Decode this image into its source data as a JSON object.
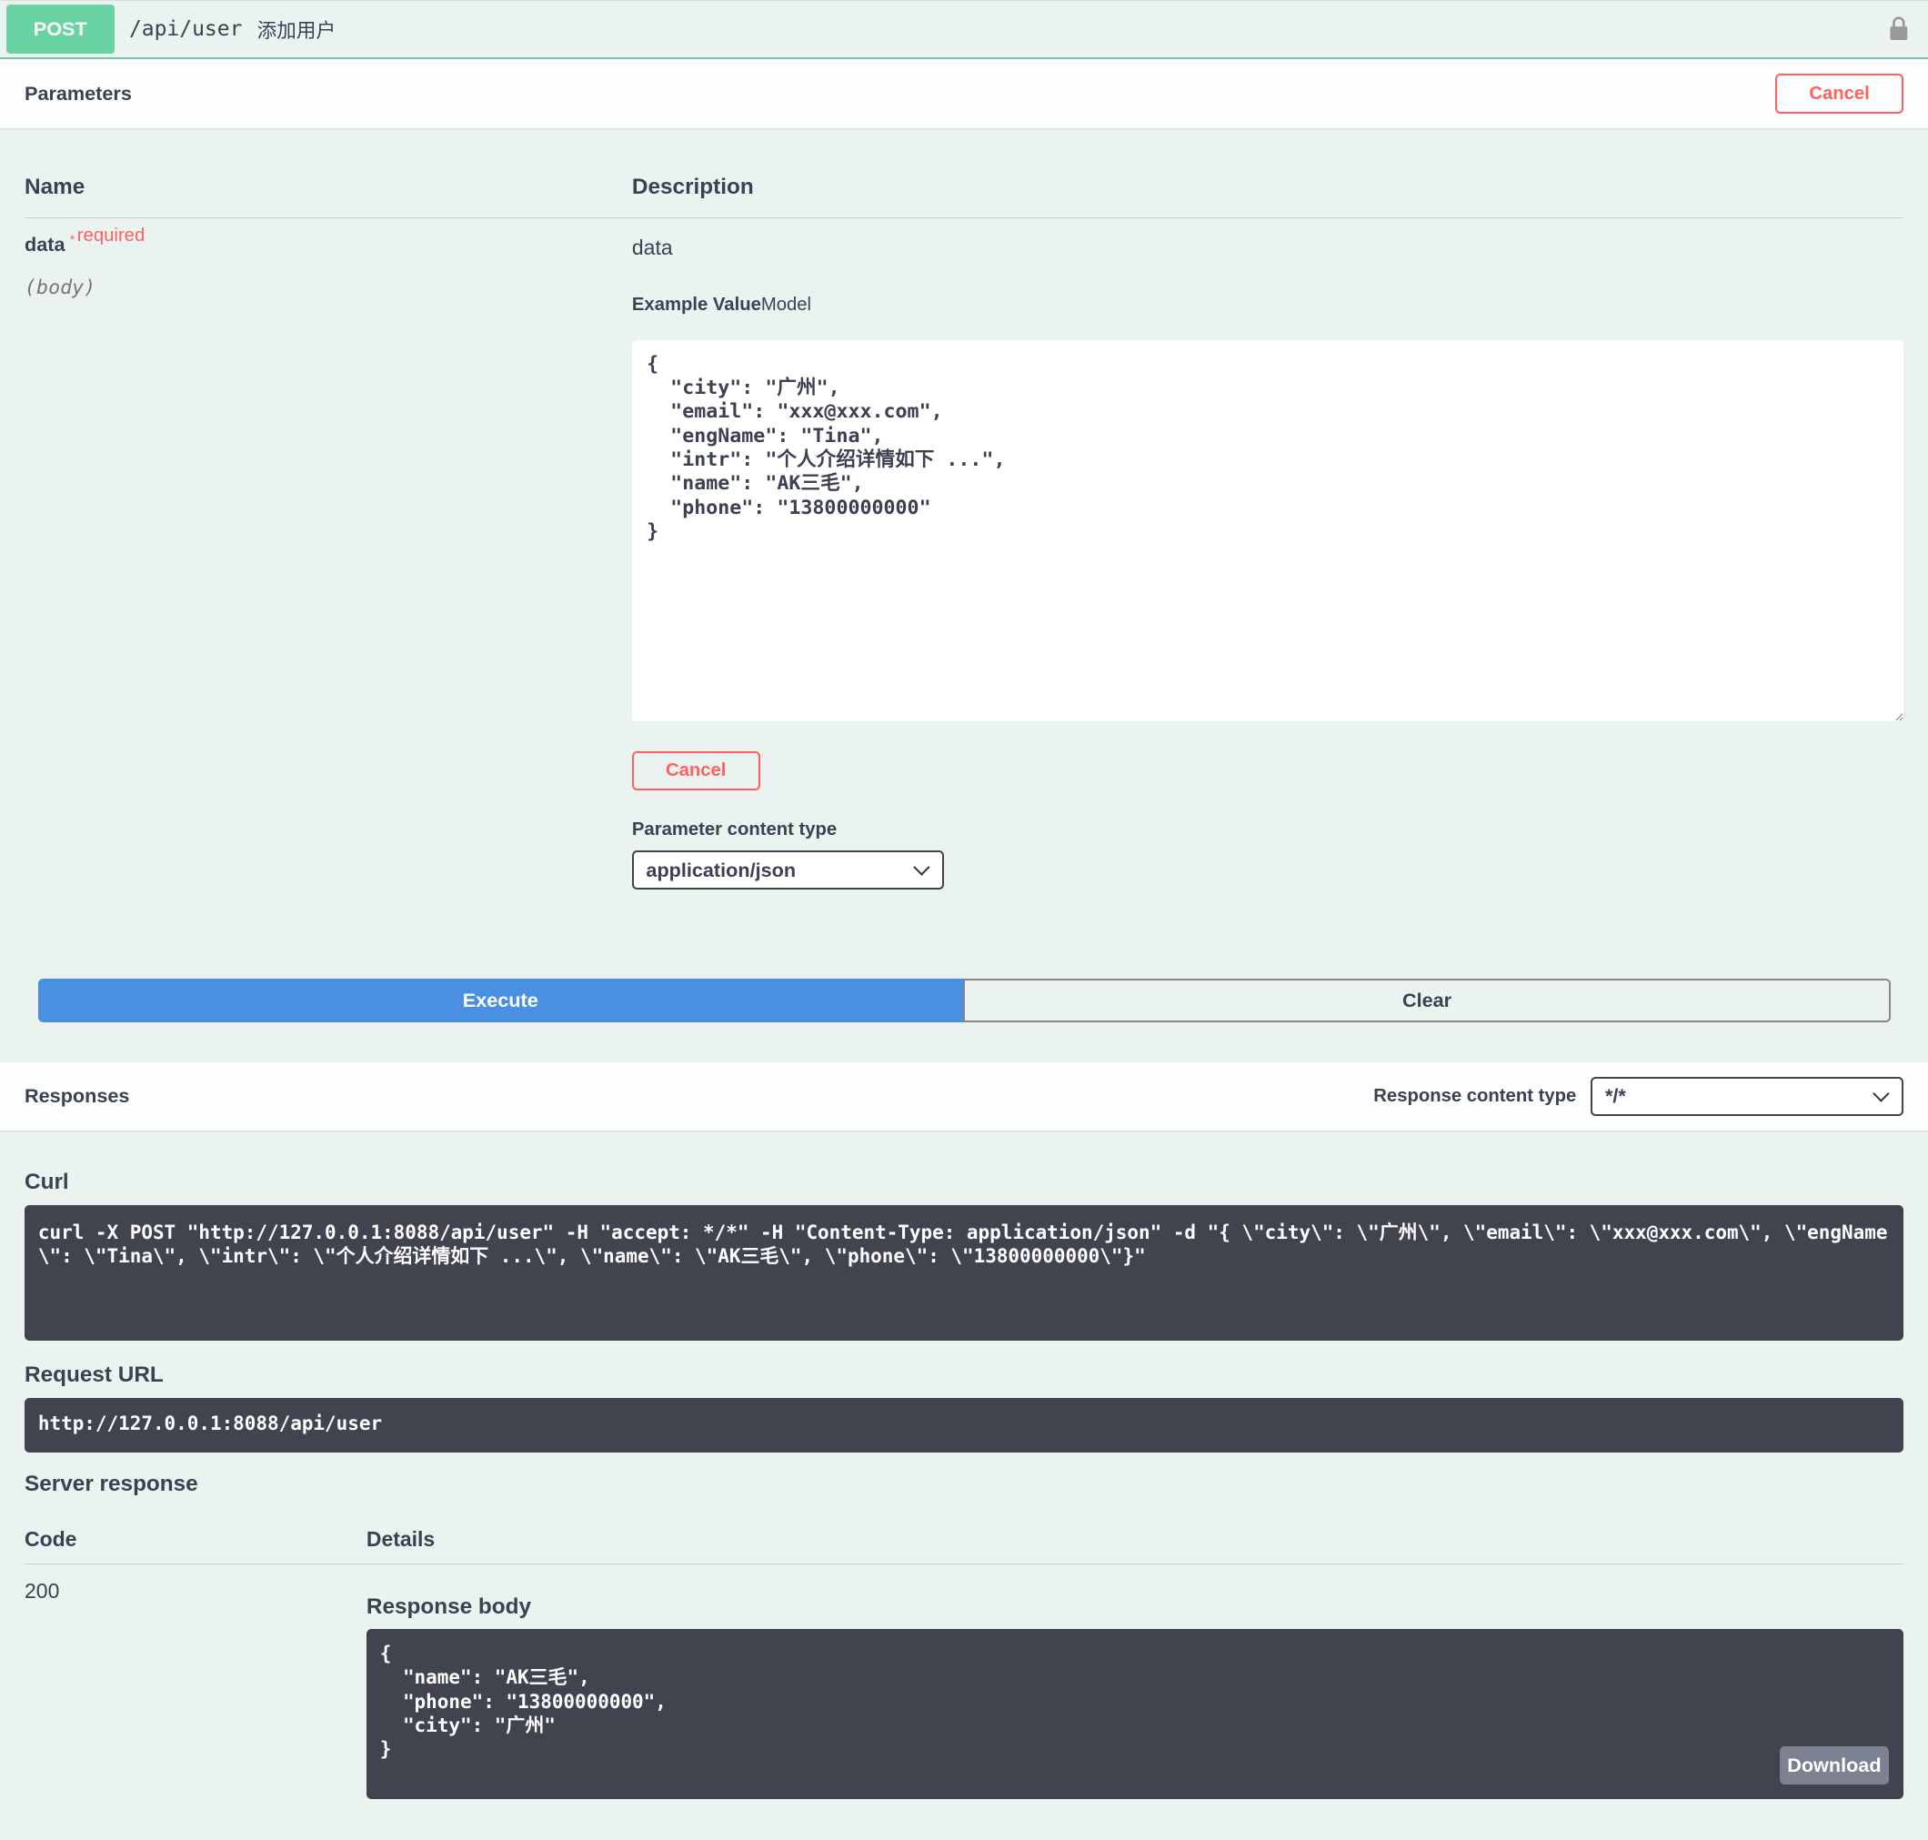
{
  "summary": {
    "method": "POST",
    "path": "/api/user",
    "description": "添加用户",
    "lock_icon": "lock-icon"
  },
  "parameters": {
    "title": "Parameters",
    "cancel_label": "Cancel",
    "col_name": "Name",
    "col_description": "Description",
    "param": {
      "name": "data",
      "required_mark": "*",
      "required_label": "required",
      "in": "(body)",
      "description": "data",
      "example_label": "Example Value",
      "model_label": "Model",
      "value": "{\n  \"city\": \"广州\",\n  \"email\": \"xxx@xxx.com\",\n  \"engName\": \"Tina\",\n  \"intr\": \"个人介绍详情如下 ...\",\n  \"name\": \"AK三毛\",\n  \"phone\": \"13800000000\"\n}",
      "cancel_label": "Cancel",
      "content_type_label": "Parameter content type",
      "content_type": "application/json"
    }
  },
  "actions": {
    "execute": "Execute",
    "clear": "Clear"
  },
  "responses": {
    "title": "Responses",
    "content_type_label": "Response content type",
    "content_type": "*/*",
    "curl_label": "Curl",
    "curl": "curl -X POST \"http://127.0.0.1:8088/api/user\" -H \"accept: */*\" -H \"Content-Type: application/json\" -d \"{ \\\"city\\\": \\\"广州\\\", \\\"email\\\": \\\"xxx@xxx.com\\\", \\\"engName\\\": \\\"Tina\\\", \\\"intr\\\": \\\"个人介绍详情如下 ...\\\", \\\"name\\\": \\\"AK三毛\\\", \\\"phone\\\": \\\"13800000000\\\"}\"",
    "request_url_label": "Request URL",
    "request_url": "http://127.0.0.1:8088/api/user",
    "server_response_label": "Server response",
    "col_code": "Code",
    "col_details": "Details",
    "code": "200",
    "response_body_label": "Response body",
    "response_body": "{\n  \"name\": \"AK三毛\",\n  \"phone\": \"13800000000\",\n  \"city\": \"广州\"\n}",
    "download_label": "Download"
  }
}
